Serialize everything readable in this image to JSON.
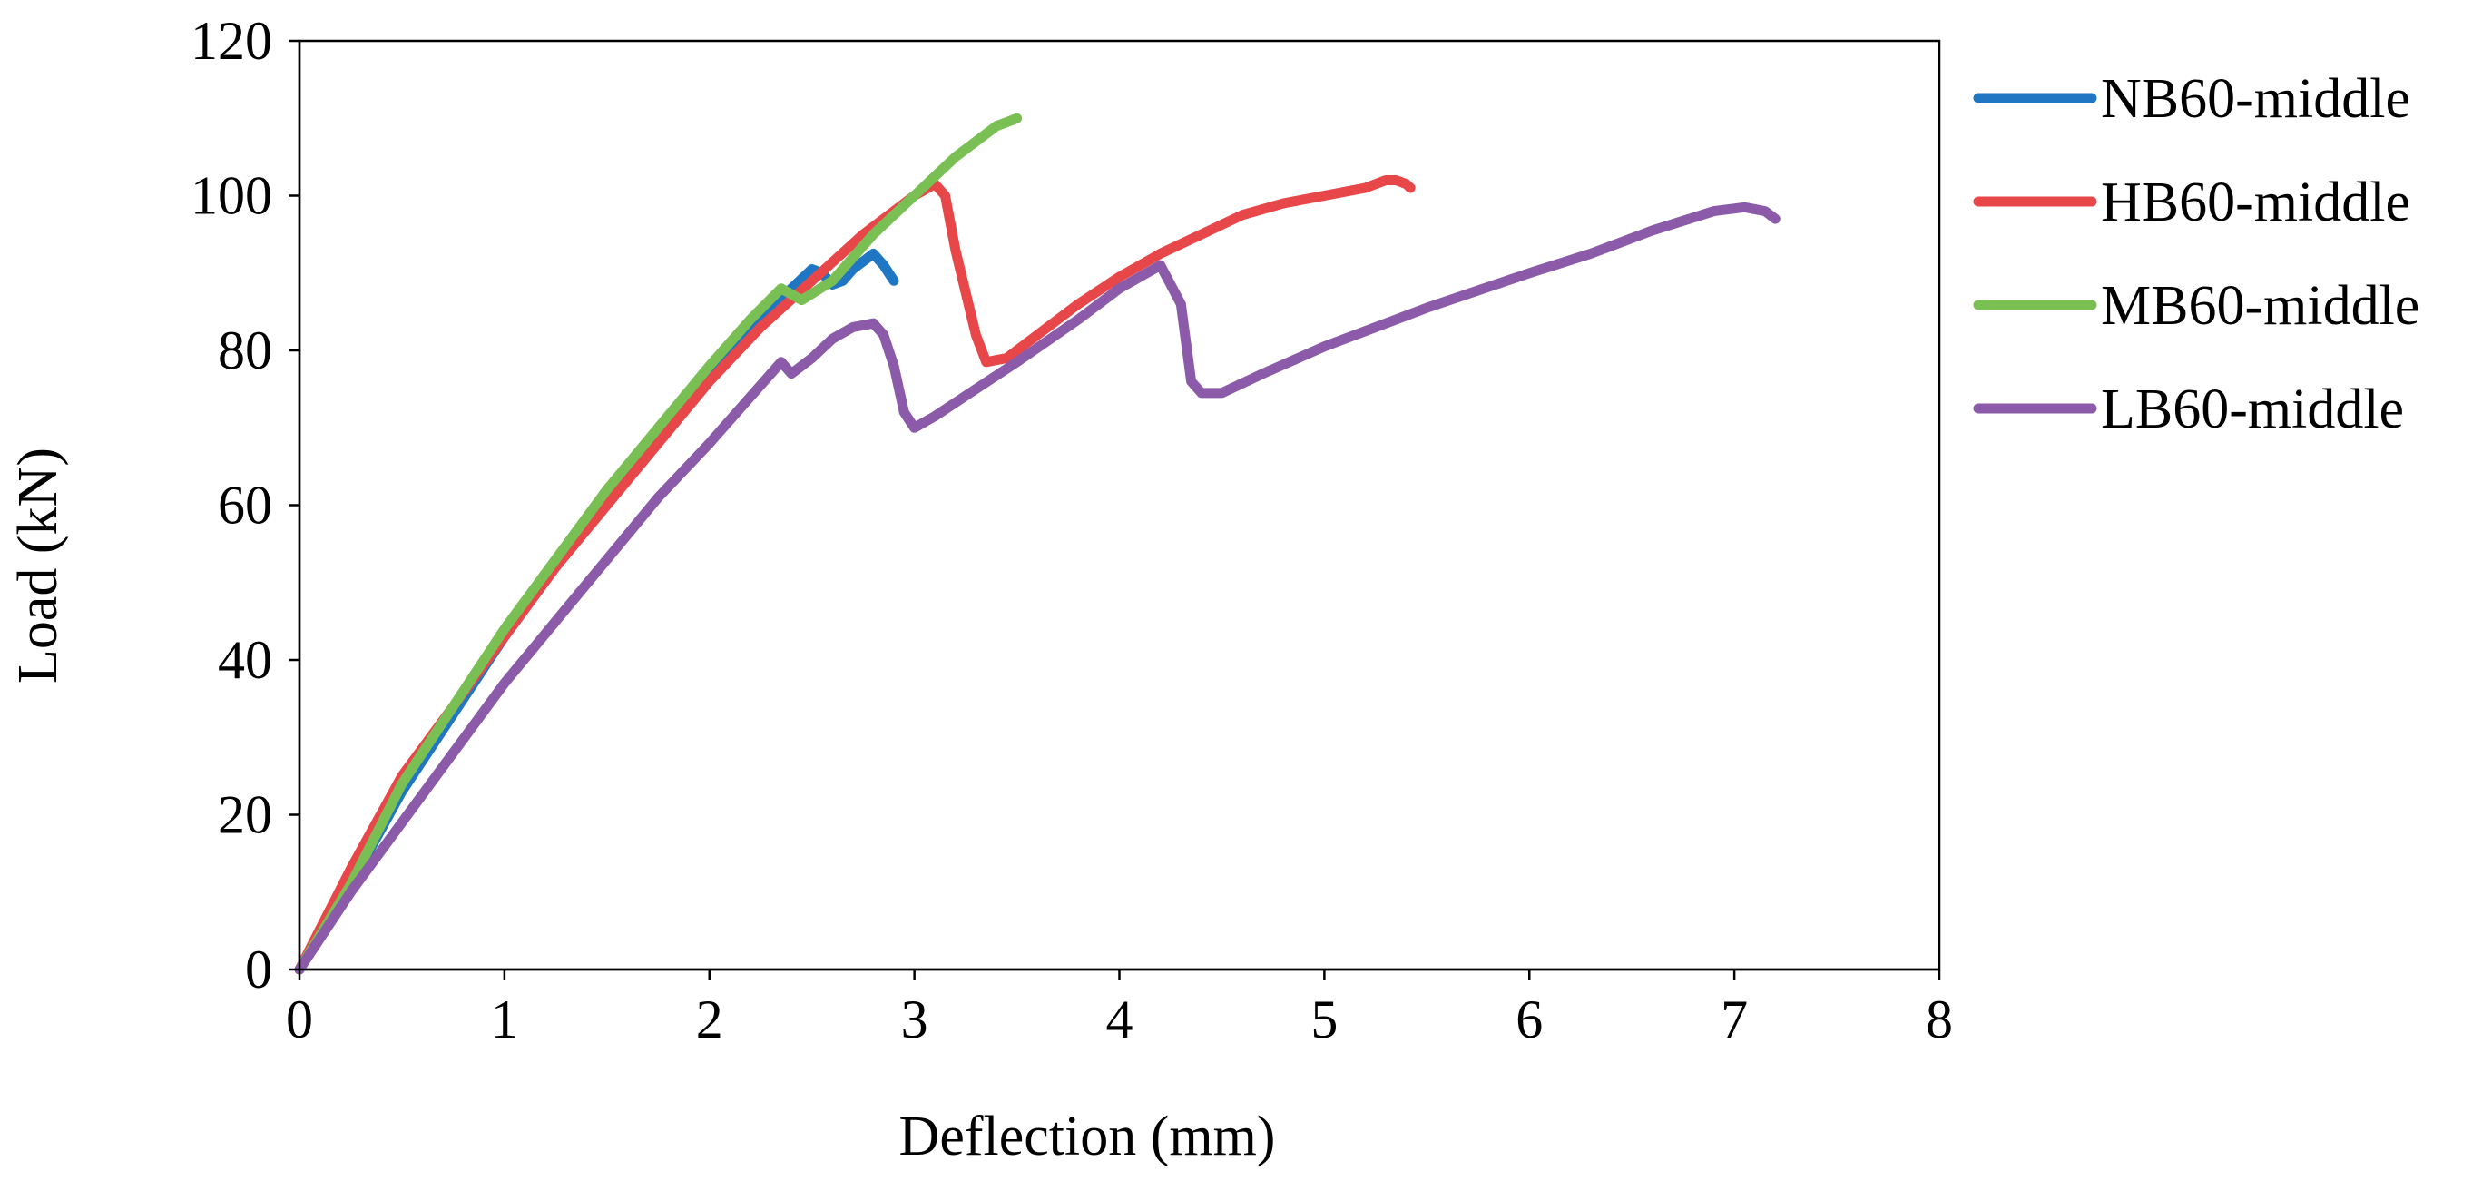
{
  "chart_data": {
    "type": "line",
    "title": "",
    "xlabel": "Deflection (mm)",
    "ylabel": "Load (kN)",
    "xlim": [
      0,
      8
    ],
    "ylim": [
      0,
      120
    ],
    "xticks": [
      0,
      1,
      2,
      3,
      4,
      5,
      6,
      7,
      8
    ],
    "yticks": [
      0,
      20,
      40,
      60,
      80,
      100,
      120
    ],
    "xtick_labels": [
      "0",
      "1",
      "2",
      "3",
      "4",
      "5",
      "6",
      "7",
      "8"
    ],
    "ytick_labels": [
      "0",
      "20",
      "40",
      "60",
      "80",
      "100",
      "120"
    ],
    "grid": false,
    "legend_position": "right",
    "series": [
      {
        "name": "NB60-middle",
        "color": "#1f77c4",
        "x": [
          0,
          0.25,
          0.5,
          0.75,
          1.0,
          1.25,
          1.5,
          1.75,
          2.0,
          2.25,
          2.4,
          2.5,
          2.55,
          2.6,
          2.65,
          2.7,
          2.8,
          2.85,
          2.9
        ],
        "y": [
          0,
          11,
          23,
          33,
          43,
          52,
          61,
          69,
          77,
          84,
          88,
          90.5,
          90,
          88.5,
          89,
          90.5,
          92.5,
          91,
          89
        ]
      },
      {
        "name": "HB60-middle",
        "color": "#e8474a",
        "x": [
          0,
          0.25,
          0.5,
          0.75,
          1.0,
          1.25,
          1.5,
          1.75,
          2.0,
          2.25,
          2.5,
          2.75,
          3.0,
          3.1,
          3.15,
          3.2,
          3.3,
          3.35,
          3.45,
          3.6,
          3.8,
          4.0,
          4.2,
          4.4,
          4.6,
          4.8,
          5.0,
          5.2,
          5.3,
          5.35,
          5.4,
          5.42
        ],
        "y": [
          0,
          13,
          25,
          34,
          43,
          52,
          60,
          68,
          76,
          83,
          89,
          95,
          100,
          101.5,
          100,
          93,
          82,
          78.5,
          79,
          82,
          86,
          89.5,
          92.5,
          95,
          97.5,
          99,
          100,
          101,
          102,
          102,
          101.5,
          101
        ]
      },
      {
        "name": "MB60-middle",
        "color": "#79bf54",
        "x": [
          0,
          0.25,
          0.5,
          0.75,
          1.0,
          1.25,
          1.5,
          1.75,
          2.0,
          2.2,
          2.35,
          2.45,
          2.6,
          2.8,
          3.0,
          3.2,
          3.4,
          3.5
        ],
        "y": [
          0,
          11,
          24,
          34,
          44,
          53,
          62,
          70,
          78,
          84,
          88,
          86.5,
          89,
          95,
          100,
          105,
          109,
          110
        ]
      },
      {
        "name": "LB60-middle",
        "color": "#8b5aa8",
        "x": [
          0,
          0.25,
          0.5,
          0.75,
          1.0,
          1.25,
          1.5,
          1.75,
          2.0,
          2.2,
          2.35,
          2.4,
          2.5,
          2.6,
          2.7,
          2.8,
          2.85,
          2.9,
          2.95,
          3.0,
          3.1,
          3.3,
          3.5,
          3.8,
          4.0,
          4.2,
          4.3,
          4.35,
          4.4,
          4.5,
          4.7,
          5.0,
          5.5,
          6.0,
          6.3,
          6.6,
          6.9,
          7.05,
          7.15,
          7.2
        ],
        "y": [
          0,
          10,
          19,
          28,
          37,
          45,
          53,
          61,
          68,
          74,
          78.5,
          77,
          79,
          81.5,
          83,
          83.5,
          82,
          78,
          72,
          70,
          71.5,
          75,
          78.5,
          84,
          88,
          91,
          86,
          76,
          74.5,
          74.5,
          77,
          80.5,
          85.5,
          90,
          92.5,
          95.5,
          98,
          98.5,
          98,
          97
        ]
      }
    ]
  }
}
